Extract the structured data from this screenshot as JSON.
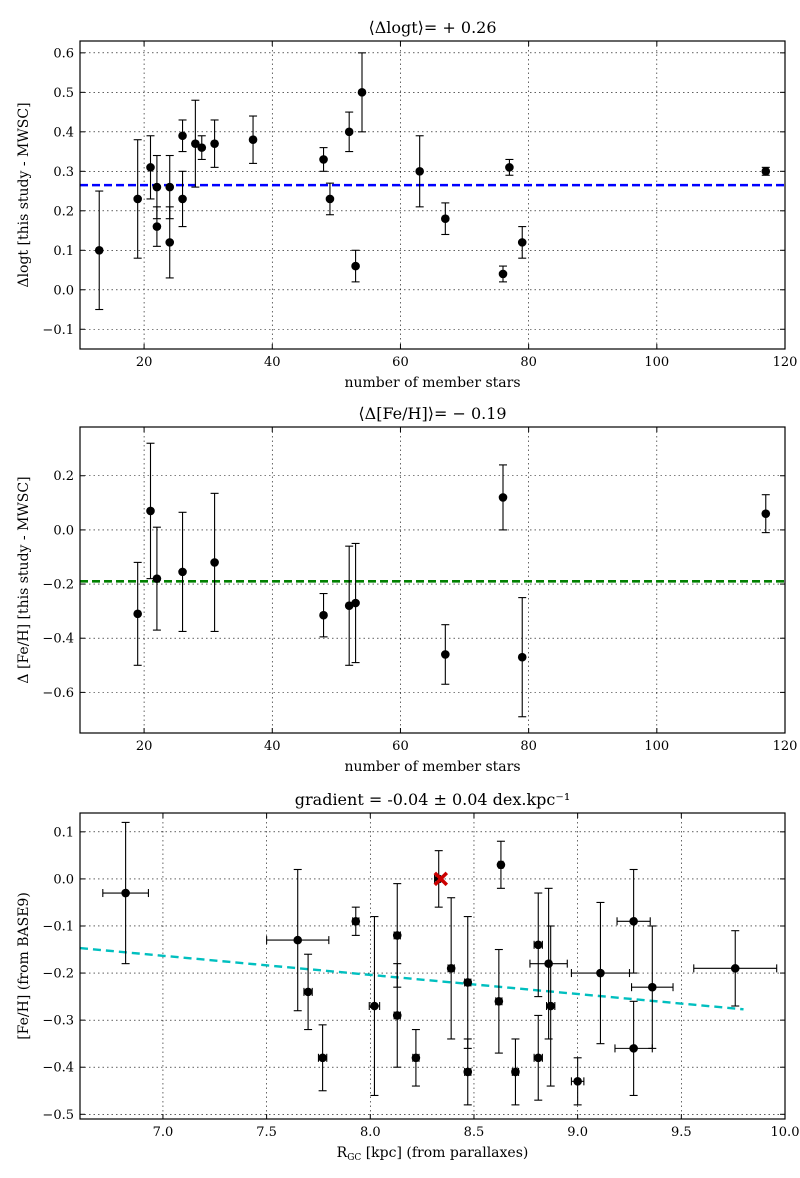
{
  "chart_data": [
    {
      "type": "scatter",
      "title": "⟨Δlogt⟩= + 0.26",
      "xlabel": "number of member stars",
      "ylabel": "Δlogt [this study - MWSC]",
      "xlim": [
        10,
        120
      ],
      "ylim": [
        -0.15,
        0.63
      ],
      "xticks": [
        20,
        40,
        60,
        80,
        100,
        120
      ],
      "yticks": [
        -0.1,
        0.0,
        0.1,
        0.2,
        0.3,
        0.4,
        0.5,
        0.6
      ],
      "grid": true,
      "mean_line": {
        "y": 0.265,
        "color": "#0000ff"
      },
      "points": [
        {
          "x": 13,
          "y": 0.1,
          "err": 0.15
        },
        {
          "x": 19,
          "y": 0.23,
          "err": 0.15
        },
        {
          "x": 21,
          "y": 0.31,
          "err": 0.08
        },
        {
          "x": 22,
          "y": 0.26,
          "err": 0.08
        },
        {
          "x": 22,
          "y": 0.16,
          "err": 0.05
        },
        {
          "x": 24,
          "y": 0.26,
          "err": 0.08
        },
        {
          "x": 24,
          "y": 0.12,
          "err": 0.09
        },
        {
          "x": 26,
          "y": 0.39,
          "err": 0.04
        },
        {
          "x": 26,
          "y": 0.23,
          "err": 0.07
        },
        {
          "x": 28,
          "y": 0.37,
          "err": 0.11
        },
        {
          "x": 29,
          "y": 0.36,
          "err": 0.03
        },
        {
          "x": 31,
          "y": 0.37,
          "err": 0.06
        },
        {
          "x": 37,
          "y": 0.38,
          "err": 0.06
        },
        {
          "x": 48,
          "y": 0.33,
          "err": 0.03
        },
        {
          "x": 49,
          "y": 0.23,
          "err": 0.04
        },
        {
          "x": 52,
          "y": 0.4,
          "err": 0.05
        },
        {
          "x": 53,
          "y": 0.06,
          "err": 0.04
        },
        {
          "x": 54,
          "y": 0.5,
          "err": 0.1
        },
        {
          "x": 63,
          "y": 0.3,
          "err": 0.09
        },
        {
          "x": 67,
          "y": 0.18,
          "err": 0.04
        },
        {
          "x": 76,
          "y": 0.04,
          "err": 0.02
        },
        {
          "x": 77,
          "y": 0.31,
          "err": 0.02
        },
        {
          "x": 79,
          "y": 0.12,
          "err": 0.04
        },
        {
          "x": 117,
          "y": 0.3,
          "err": 0.01
        }
      ]
    },
    {
      "type": "scatter",
      "title": "⟨Δ[Fe/H]⟩= − 0.19",
      "xlabel": "number of member stars",
      "ylabel": "Δ [Fe/H] [this study - MWSC]",
      "xlim": [
        10,
        120
      ],
      "ylim": [
        -0.75,
        0.38
      ],
      "xticks": [
        20,
        40,
        60,
        80,
        100,
        120
      ],
      "yticks": [
        -0.6,
        -0.4,
        -0.2,
        0.0,
        0.2
      ],
      "grid": true,
      "mean_line": {
        "y": -0.19,
        "color": "#008000"
      },
      "points": [
        {
          "x": 19,
          "y": -0.31,
          "err": 0.19
        },
        {
          "x": 21,
          "y": 0.07,
          "err": 0.25
        },
        {
          "x": 22,
          "y": -0.18,
          "err": 0.19
        },
        {
          "x": 26,
          "y": -0.155,
          "err": 0.22
        },
        {
          "x": 31,
          "y": -0.12,
          "err": 0.255
        },
        {
          "x": 48,
          "y": -0.315,
          "err": 0.08
        },
        {
          "x": 52,
          "y": -0.28,
          "err": 0.22
        },
        {
          "x": 53,
          "y": -0.27,
          "err": 0.22
        },
        {
          "x": 67,
          "y": -0.46,
          "err": 0.11
        },
        {
          "x": 76,
          "y": 0.12,
          "err": 0.12
        },
        {
          "x": 79,
          "y": -0.47,
          "err": 0.22
        },
        {
          "x": 117,
          "y": 0.06,
          "err": 0.07
        }
      ]
    },
    {
      "type": "scatter",
      "title": "gradient = -0.04 ± 0.04 dex.kpc⁻¹",
      "xlabel": "R_GC [kpc] (from parallaxes)",
      "ylabel": "[Fe/H] (from BASE9)",
      "xlim": [
        6.6,
        10.0
      ],
      "ylim": [
        -0.51,
        0.14
      ],
      "xticks": [
        7.0,
        7.5,
        8.0,
        8.5,
        9.0,
        9.5,
        10.0
      ],
      "yticks": [
        -0.5,
        -0.4,
        -0.3,
        -0.2,
        -0.1,
        0.0,
        0.1
      ],
      "grid": true,
      "fit_line": {
        "x": [
          6.6,
          9.8
        ],
        "y": [
          -0.147,
          -0.277
        ],
        "color": "#00bfbf"
      },
      "sun_marker": {
        "x": 8.34,
        "y": 0.0,
        "color": "#cc0000"
      },
      "points": [
        {
          "x": 6.82,
          "y": -0.03,
          "xerr": 0.11,
          "yerr": 0.15
        },
        {
          "x": 7.65,
          "y": -0.13,
          "xerr": 0.15,
          "yerr": 0.15
        },
        {
          "x": 7.7,
          "y": -0.24,
          "xerr": 0.02,
          "yerr": 0.08
        },
        {
          "x": 7.77,
          "y": -0.38,
          "xerr": 0.02,
          "yerr": 0.07
        },
        {
          "x": 7.93,
          "y": -0.09,
          "xerr": 0.015,
          "yerr": 0.03
        },
        {
          "x": 8.02,
          "y": -0.27,
          "xerr": 0.025,
          "yerr": 0.19
        },
        {
          "x": 8.13,
          "y": -0.12,
          "xerr": 0.015,
          "yerr": 0.11
        },
        {
          "x": 8.13,
          "y": -0.29,
          "xerr": 0.015,
          "yerr": 0.11
        },
        {
          "x": 8.22,
          "y": -0.38,
          "xerr": 0.015,
          "yerr": 0.06
        },
        {
          "x": 8.33,
          "y": 0.0,
          "xerr": 0.02,
          "yerr": 0.06
        },
        {
          "x": 8.39,
          "y": -0.19,
          "xerr": 0.015,
          "yerr": 0.15
        },
        {
          "x": 8.47,
          "y": -0.22,
          "xerr": 0.015,
          "yerr": 0.14
        },
        {
          "x": 8.47,
          "y": -0.41,
          "xerr": 0.015,
          "yerr": 0.07
        },
        {
          "x": 8.62,
          "y": -0.26,
          "xerr": 0.015,
          "yerr": 0.11
        },
        {
          "x": 8.63,
          "y": 0.03,
          "xerr": 0.01,
          "yerr": 0.05
        },
        {
          "x": 8.7,
          "y": -0.41,
          "xerr": 0.015,
          "yerr": 0.07
        },
        {
          "x": 8.81,
          "y": -0.14,
          "xerr": 0.02,
          "yerr": 0.11
        },
        {
          "x": 8.81,
          "y": -0.38,
          "xerr": 0.02,
          "yerr": 0.09
        },
        {
          "x": 8.86,
          "y": -0.18,
          "xerr": 0.09,
          "yerr": 0.16
        },
        {
          "x": 8.87,
          "y": -0.27,
          "xerr": 0.02,
          "yerr": 0.17
        },
        {
          "x": 9.0,
          "y": -0.43,
          "xerr": 0.03,
          "yerr": 0.05
        },
        {
          "x": 9.11,
          "y": -0.2,
          "xerr": 0.14,
          "yerr": 0.15
        },
        {
          "x": 9.27,
          "y": -0.09,
          "xerr": 0.08,
          "yerr": 0.11
        },
        {
          "x": 9.27,
          "y": -0.36,
          "xerr": 0.09,
          "yerr": 0.1
        },
        {
          "x": 9.36,
          "y": -0.23,
          "xerr": 0.1,
          "yerr": 0.13
        },
        {
          "x": 9.76,
          "y": -0.19,
          "xerr": 0.2,
          "yerr": 0.08
        }
      ]
    }
  ]
}
